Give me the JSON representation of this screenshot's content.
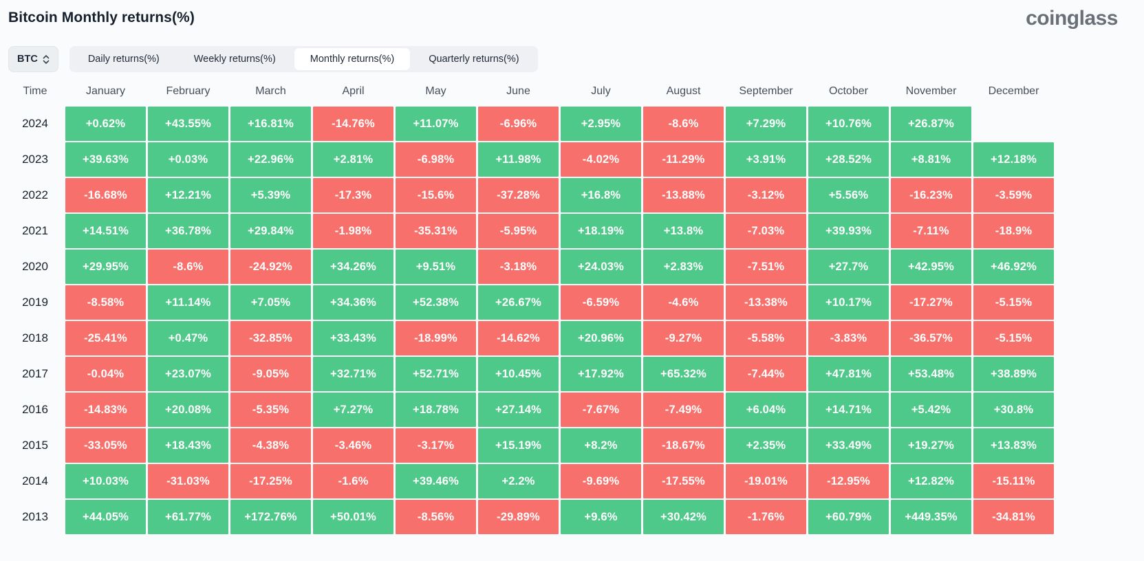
{
  "page": {
    "title": "Bitcoin Monthly returns(%)",
    "logo": "coinglass"
  },
  "toolbar": {
    "coin_selector": {
      "value": "BTC",
      "icon": "unfold-chevrons-icon"
    },
    "tabs": [
      {
        "name": "tab-daily-returns",
        "label": "Daily returns(%)",
        "active": false
      },
      {
        "name": "tab-weekly-returns",
        "label": "Weekly returns(%)",
        "active": false
      },
      {
        "name": "tab-monthly-returns",
        "label": "Monthly returns(%)",
        "active": true
      },
      {
        "name": "tab-quarterly-returns",
        "label": "Quarterly returns(%)",
        "active": false
      }
    ]
  },
  "colors": {
    "positive": "#4fc98a",
    "negative": "#f7706b",
    "cell_text": "#ffffff"
  },
  "table": {
    "columns": [
      "Time",
      "January",
      "February",
      "March",
      "April",
      "May",
      "June",
      "July",
      "August",
      "September",
      "October",
      "November",
      "December"
    ],
    "rows": [
      {
        "year": "2024",
        "cells": [
          "+0.62%",
          "+43.55%",
          "+16.81%",
          "-14.76%",
          "+11.07%",
          "-6.96%",
          "+2.95%",
          "-8.6%",
          "+7.29%",
          "+10.76%",
          "+26.87%",
          null
        ]
      },
      {
        "year": "2023",
        "cells": [
          "+39.63%",
          "+0.03%",
          "+22.96%",
          "+2.81%",
          "-6.98%",
          "+11.98%",
          "-4.02%",
          "-11.29%",
          "+3.91%",
          "+28.52%",
          "+8.81%",
          "+12.18%"
        ]
      },
      {
        "year": "2022",
        "cells": [
          "-16.68%",
          "+12.21%",
          "+5.39%",
          "-17.3%",
          "-15.6%",
          "-37.28%",
          "+16.8%",
          "-13.88%",
          "-3.12%",
          "+5.56%",
          "-16.23%",
          "-3.59%"
        ]
      },
      {
        "year": "2021",
        "cells": [
          "+14.51%",
          "+36.78%",
          "+29.84%",
          "-1.98%",
          "-35.31%",
          "-5.95%",
          "+18.19%",
          "+13.8%",
          "-7.03%",
          "+39.93%",
          "-7.11%",
          "-18.9%"
        ]
      },
      {
        "year": "2020",
        "cells": [
          "+29.95%",
          "-8.6%",
          "-24.92%",
          "+34.26%",
          "+9.51%",
          "-3.18%",
          "+24.03%",
          "+2.83%",
          "-7.51%",
          "+27.7%",
          "+42.95%",
          "+46.92%"
        ]
      },
      {
        "year": "2019",
        "cells": [
          "-8.58%",
          "+11.14%",
          "+7.05%",
          "+34.36%",
          "+52.38%",
          "+26.67%",
          "-6.59%",
          "-4.6%",
          "-13.38%",
          "+10.17%",
          "-17.27%",
          "-5.15%"
        ]
      },
      {
        "year": "2018",
        "cells": [
          "-25.41%",
          "+0.47%",
          "-32.85%",
          "+33.43%",
          "-18.99%",
          "-14.62%",
          "+20.96%",
          "-9.27%",
          "-5.58%",
          "-3.83%",
          "-36.57%",
          "-5.15%"
        ]
      },
      {
        "year": "2017",
        "cells": [
          "-0.04%",
          "+23.07%",
          "-9.05%",
          "+32.71%",
          "+52.71%",
          "+10.45%",
          "+17.92%",
          "+65.32%",
          "-7.44%",
          "+47.81%",
          "+53.48%",
          "+38.89%"
        ]
      },
      {
        "year": "2016",
        "cells": [
          "-14.83%",
          "+20.08%",
          "-5.35%",
          "+7.27%",
          "+18.78%",
          "+27.14%",
          "-7.67%",
          "-7.49%",
          "+6.04%",
          "+14.71%",
          "+5.42%",
          "+30.8%"
        ]
      },
      {
        "year": "2015",
        "cells": [
          "-33.05%",
          "+18.43%",
          "-4.38%",
          "-3.46%",
          "-3.17%",
          "+15.19%",
          "+8.2%",
          "-18.67%",
          "+2.35%",
          "+33.49%",
          "+19.27%",
          "+13.83%"
        ]
      },
      {
        "year": "2014",
        "cells": [
          "+10.03%",
          "-31.03%",
          "-17.25%",
          "-1.6%",
          "+39.46%",
          "+2.2%",
          "-9.69%",
          "-17.55%",
          "-19.01%",
          "-12.95%",
          "+12.82%",
          "-15.11%"
        ]
      },
      {
        "year": "2013",
        "cells": [
          "+44.05%",
          "+61.77%",
          "+172.76%",
          "+50.01%",
          "-8.56%",
          "-29.89%",
          "+9.6%",
          "+30.42%",
          "-1.76%",
          "+60.79%",
          "+449.35%",
          "-34.81%"
        ]
      }
    ]
  }
}
